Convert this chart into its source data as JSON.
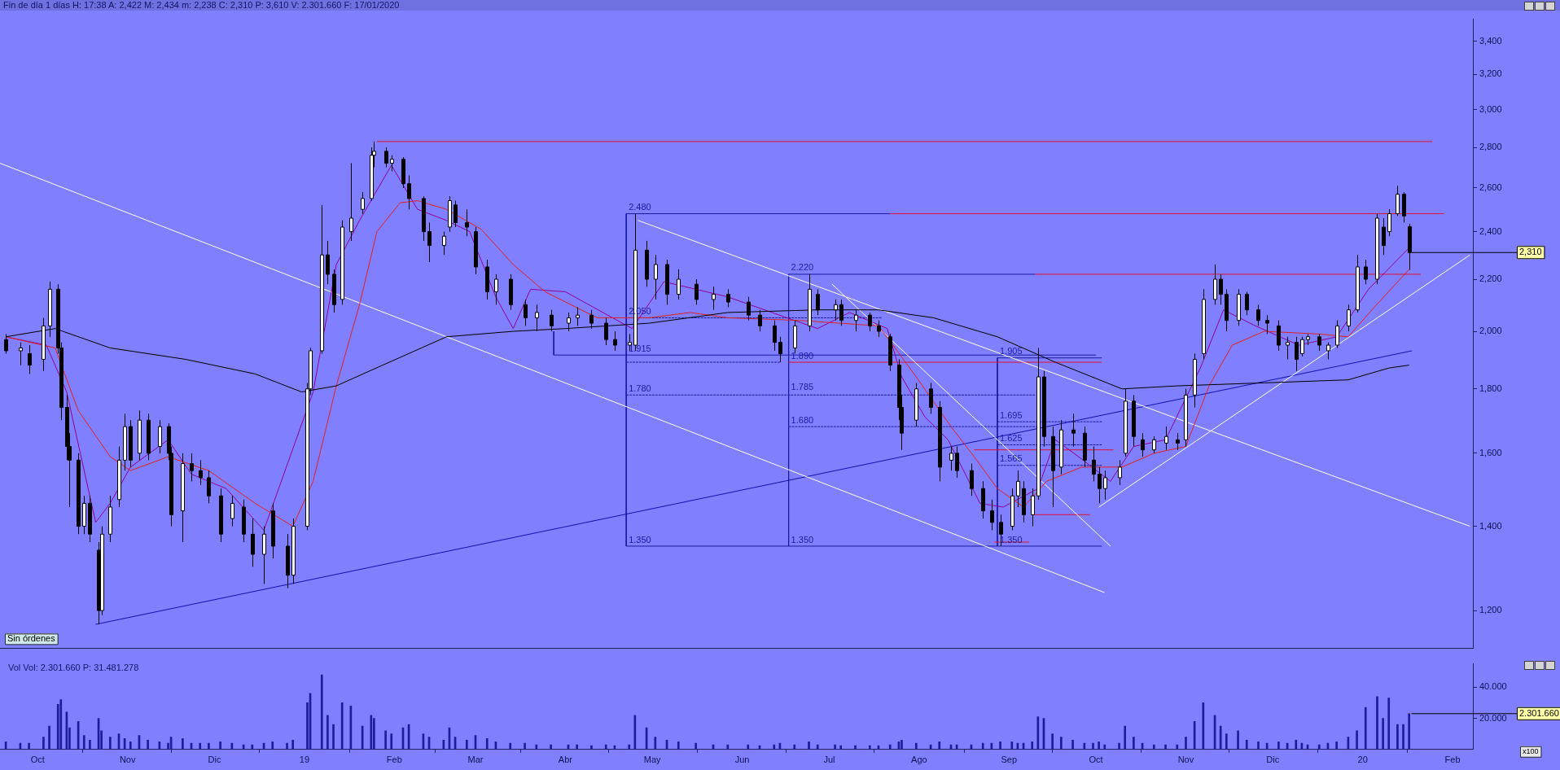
{
  "chart_data": [
    {
      "type": "candlestick",
      "title": "Fin de día 1 días  H: 17:38  A: 2,422  M: 2,434  m: 2,238  C: 2,310  P: 3,610  V: 2.301.660  F: 17/01/2020",
      "x": [
        "2018-09-20",
        "2018-09-25",
        "2018-09-28",
        "2018-10-03",
        "2018-10-05",
        "2018-10-08",
        "2018-10-09",
        "2018-10-11",
        "2018-10-12",
        "2018-10-15",
        "2018-10-17",
        "2018-10-19",
        "2018-10-22",
        "2018-10-23",
        "2018-10-26",
        "2018-10-29",
        "2018-10-31",
        "2018-11-02",
        "2018-11-05",
        "2018-11-08",
        "2018-11-12",
        "2018-11-15",
        "2018-11-16",
        "2018-11-20",
        "2018-11-23",
        "2018-11-26",
        "2018-11-29",
        "2018-12-03",
        "2018-12-07",
        "2018-12-11",
        "2018-12-14",
        "2018-12-18",
        "2018-12-21",
        "2018-12-26",
        "2018-12-28",
        "2019-01-02",
        "2019-01-03",
        "2019-01-07",
        "2019-01-09",
        "2019-01-11",
        "2019-01-14",
        "2019-01-17",
        "2019-01-21",
        "2019-01-24",
        "2019-01-25",
        "2019-01-29",
        "2019-01-31",
        "2019-02-04",
        "2019-02-06",
        "2019-02-11",
        "2019-02-13",
        "2019-02-18",
        "2019-02-20",
        "2019-02-22",
        "2019-02-26",
        "2019-03-01",
        "2019-03-05",
        "2019-03-08",
        "2019-03-13",
        "2019-03-18",
        "2019-03-22",
        "2019-03-27",
        "2019-04-02",
        "2019-04-05",
        "2019-04-10",
        "2019-04-15",
        "2019-04-18",
        "2019-04-23",
        "2019-04-25",
        "2019-04-29",
        "2019-05-02",
        "2019-05-06",
        "2019-05-10",
        "2019-05-16",
        "2019-05-22",
        "2019-05-27",
        "2019-06-03",
        "2019-06-07",
        "2019-06-12",
        "2019-06-14",
        "2019-06-19",
        "2019-06-24",
        "2019-06-27",
        "2019-07-03",
        "2019-07-05",
        "2019-07-10",
        "2019-07-15",
        "2019-07-18",
        "2019-07-22",
        "2019-07-25",
        "2019-07-26",
        "2019-07-31",
        "2019-08-05",
        "2019-08-08",
        "2019-08-12",
        "2019-08-14",
        "2019-08-19",
        "2019-08-23",
        "2019-08-26",
        "2019-08-29",
        "2019-09-02",
        "2019-09-04",
        "2019-09-06",
        "2019-09-09",
        "2019-09-11",
        "2019-09-13",
        "2019-09-16",
        "2019-09-19",
        "2019-09-23",
        "2019-09-27",
        "2019-09-30",
        "2019-10-02",
        "2019-10-04",
        "2019-10-09",
        "2019-10-11",
        "2019-10-14",
        "2019-10-17",
        "2019-10-21",
        "2019-10-25",
        "2019-10-29",
        "2019-11-01",
        "2019-11-04",
        "2019-11-07",
        "2019-11-11",
        "2019-11-13",
        "2019-11-15",
        "2019-11-19",
        "2019-11-22",
        "2019-11-26",
        "2019-11-29",
        "2019-12-03",
        "2019-12-06",
        "2019-12-09",
        "2019-12-11",
        "2019-12-13",
        "2019-12-17",
        "2019-12-20",
        "2019-12-23",
        "2019-12-27",
        "2019-12-30",
        "2020-01-02",
        "2020-01-06",
        "2020-01-08",
        "2020-01-10",
        "2020-01-13",
        "2020-01-15",
        "2020-01-17"
      ],
      "ohlc": [
        [
          1.97,
          1.99,
          1.92,
          1.93
        ],
        [
          1.93,
          1.96,
          1.88,
          1.94
        ],
        [
          1.92,
          1.95,
          1.85,
          1.88
        ],
        [
          1.9,
          2.05,
          1.86,
          2.02
        ],
        [
          2.02,
          2.19,
          1.98,
          2.16
        ],
        [
          2.16,
          2.18,
          1.92,
          1.94
        ],
        [
          1.94,
          1.96,
          1.7,
          1.74
        ],
        [
          1.74,
          1.78,
          1.58,
          1.62
        ],
        [
          1.62,
          1.66,
          1.45,
          1.58
        ],
        [
          1.58,
          1.6,
          1.38,
          1.4
        ],
        [
          1.4,
          1.48,
          1.38,
          1.46
        ],
        [
          1.46,
          1.48,
          1.36,
          1.38
        ],
        [
          1.34,
          1.36,
          1.17,
          1.2
        ],
        [
          1.2,
          1.4,
          1.19,
          1.38
        ],
        [
          1.38,
          1.48,
          1.36,
          1.45
        ],
        [
          1.47,
          1.62,
          1.45,
          1.58
        ],
        [
          1.58,
          1.72,
          1.55,
          1.68
        ],
        [
          1.68,
          1.7,
          1.56,
          1.58
        ],
        [
          1.6,
          1.73,
          1.58,
          1.7
        ],
        [
          1.7,
          1.72,
          1.58,
          1.6
        ],
        [
          1.62,
          1.7,
          1.6,
          1.68
        ],
        [
          1.68,
          1.69,
          1.58,
          1.6
        ],
        [
          1.6,
          1.62,
          1.4,
          1.43
        ],
        [
          1.44,
          1.6,
          1.36,
          1.57
        ],
        [
          1.57,
          1.6,
          1.52,
          1.55
        ],
        [
          1.55,
          1.58,
          1.51,
          1.53
        ],
        [
          1.53,
          1.55,
          1.46,
          1.48
        ],
        [
          1.48,
          1.5,
          1.36,
          1.38
        ],
        [
          1.42,
          1.48,
          1.4,
          1.46
        ],
        [
          1.45,
          1.47,
          1.36,
          1.38
        ],
        [
          1.38,
          1.42,
          1.3,
          1.33
        ],
        [
          1.33,
          1.4,
          1.26,
          1.38
        ],
        [
          1.44,
          1.46,
          1.32,
          1.35
        ],
        [
          1.35,
          1.38,
          1.25,
          1.28
        ],
        [
          1.28,
          1.42,
          1.26,
          1.4
        ],
        [
          1.4,
          1.82,
          1.39,
          1.8
        ],
        [
          1.8,
          1.94,
          1.78,
          1.93
        ],
        [
          1.93,
          2.52,
          1.92,
          2.3
        ],
        [
          2.3,
          2.36,
          2.18,
          2.22
        ],
        [
          2.22,
          2.24,
          2.07,
          2.1
        ],
        [
          2.12,
          2.45,
          2.1,
          2.42
        ],
        [
          2.4,
          2.72,
          2.36,
          2.46
        ],
        [
          2.5,
          2.58,
          2.48,
          2.55
        ],
        [
          2.55,
          2.8,
          2.54,
          2.76
        ],
        [
          2.76,
          2.83,
          2.7,
          2.78
        ],
        [
          2.78,
          2.8,
          2.7,
          2.72
        ],
        [
          2.72,
          2.76,
          2.68,
          2.74
        ],
        [
          2.74,
          2.75,
          2.6,
          2.62
        ],
        [
          2.62,
          2.66,
          2.5,
          2.55
        ],
        [
          2.55,
          2.56,
          2.36,
          2.4
        ],
        [
          2.4,
          2.44,
          2.27,
          2.34
        ],
        [
          2.34,
          2.4,
          2.3,
          2.38
        ],
        [
          2.42,
          2.56,
          2.4,
          2.54
        ],
        [
          2.52,
          2.54,
          2.42,
          2.44
        ],
        [
          2.44,
          2.5,
          2.38,
          2.42
        ],
        [
          2.4,
          2.42,
          2.22,
          2.25
        ],
        [
          2.25,
          2.28,
          2.12,
          2.15
        ],
        [
          2.15,
          2.22,
          2.1,
          2.2
        ],
        [
          2.2,
          2.22,
          2.08,
          2.1
        ],
        [
          2.1,
          2.12,
          2.02,
          2.05
        ],
        [
          2.05,
          2.1,
          2.0,
          2.07
        ],
        [
          2.06,
          2.08,
          2.0,
          2.02
        ],
        [
          2.03,
          2.07,
          2.0,
          2.05
        ],
        [
          2.05,
          2.09,
          2.02,
          2.06
        ],
        [
          2.06,
          2.08,
          2.01,
          2.03
        ],
        [
          2.03,
          2.05,
          1.95,
          1.97
        ],
        [
          1.97,
          2.0,
          1.93,
          1.95
        ],
        [
          1.95,
          1.99,
          1.93,
          1.96
        ],
        [
          1.95,
          2.48,
          1.93,
          2.32
        ],
        [
          2.32,
          2.36,
          2.17,
          2.2
        ],
        [
          2.2,
          2.3,
          2.12,
          2.26
        ],
        [
          2.26,
          2.28,
          2.1,
          2.14
        ],
        [
          2.14,
          2.24,
          2.12,
          2.2
        ],
        [
          2.18,
          2.2,
          2.1,
          2.12
        ],
        [
          2.12,
          2.17,
          2.08,
          2.14
        ],
        [
          2.14,
          2.16,
          2.09,
          2.11
        ],
        [
          2.11,
          2.13,
          2.04,
          2.06
        ],
        [
          2.06,
          2.08,
          2.0,
          2.02
        ],
        [
          2.02,
          2.04,
          1.93,
          1.96
        ],
        [
          1.96,
          1.98,
          1.89,
          1.92
        ],
        [
          1.94,
          2.04,
          1.92,
          2.02
        ],
        [
          2.02,
          2.22,
          2.0,
          2.16
        ],
        [
          2.14,
          2.16,
          2.06,
          2.08
        ],
        [
          2.08,
          2.12,
          2.04,
          2.1
        ],
        [
          2.1,
          2.12,
          2.02,
          2.04
        ],
        [
          2.04,
          2.08,
          2.0,
          2.06
        ],
        [
          2.06,
          2.07,
          2.0,
          2.02
        ],
        [
          2.02,
          2.04,
          1.98,
          2.0
        ],
        [
          1.98,
          1.99,
          1.86,
          1.88
        ],
        [
          1.88,
          1.9,
          1.7,
          1.74
        ],
        [
          1.74,
          1.78,
          1.61,
          1.66
        ],
        [
          1.7,
          1.82,
          1.68,
          1.8
        ],
        [
          1.8,
          1.82,
          1.72,
          1.74
        ],
        [
          1.74,
          1.76,
          1.52,
          1.56
        ],
        [
          1.58,
          1.62,
          1.55,
          1.6
        ],
        [
          1.6,
          1.62,
          1.53,
          1.55
        ],
        [
          1.55,
          1.57,
          1.48,
          1.5
        ],
        [
          1.5,
          1.52,
          1.42,
          1.44
        ],
        [
          1.44,
          1.47,
          1.39,
          1.41
        ],
        [
          1.41,
          1.43,
          1.35,
          1.38
        ],
        [
          1.4,
          1.5,
          1.39,
          1.48
        ],
        [
          1.48,
          1.55,
          1.45,
          1.52
        ],
        [
          1.5,
          1.52,
          1.41,
          1.43
        ],
        [
          1.43,
          1.5,
          1.4,
          1.48
        ],
        [
          1.48,
          1.94,
          1.47,
          1.84
        ],
        [
          1.84,
          1.86,
          1.62,
          1.65
        ],
        [
          1.65,
          1.68,
          1.45,
          1.55
        ],
        [
          1.56,
          1.7,
          1.54,
          1.67
        ],
        [
          1.67,
          1.72,
          1.62,
          1.66
        ],
        [
          1.66,
          1.68,
          1.56,
          1.58
        ],
        [
          1.58,
          1.62,
          1.52,
          1.54
        ],
        [
          1.54,
          1.56,
          1.46,
          1.5
        ],
        [
          1.5,
          1.55,
          1.47,
          1.53
        ],
        [
          1.53,
          1.58,
          1.51,
          1.56
        ],
        [
          1.6,
          1.8,
          1.59,
          1.76
        ],
        [
          1.76,
          1.78,
          1.62,
          1.65
        ],
        [
          1.64,
          1.66,
          1.59,
          1.61
        ],
        [
          1.61,
          1.65,
          1.6,
          1.64
        ],
        [
          1.63,
          1.68,
          1.61,
          1.65
        ],
        [
          1.64,
          1.66,
          1.61,
          1.63
        ],
        [
          1.64,
          1.8,
          1.62,
          1.78
        ],
        [
          1.78,
          1.92,
          1.74,
          1.9
        ],
        [
          1.92,
          2.16,
          1.9,
          2.12
        ],
        [
          2.12,
          2.26,
          2.1,
          2.2
        ],
        [
          2.2,
          2.22,
          2.1,
          2.14
        ],
        [
          2.14,
          2.16,
          2.0,
          2.04
        ],
        [
          2.04,
          2.16,
          2.02,
          2.14
        ],
        [
          2.14,
          2.15,
          2.06,
          2.08
        ],
        [
          2.08,
          2.1,
          2.02,
          2.04
        ],
        [
          2.04,
          2.06,
          1.99,
          2.03
        ],
        [
          2.02,
          2.04,
          1.93,
          1.95
        ],
        [
          1.95,
          1.98,
          1.9,
          1.96
        ],
        [
          1.96,
          1.98,
          1.86,
          1.9
        ],
        [
          1.92,
          1.98,
          1.91,
          1.97
        ],
        [
          1.97,
          1.99,
          1.95,
          1.98
        ],
        [
          1.98,
          1.99,
          1.93,
          1.95
        ],
        [
          1.93,
          1.96,
          1.9,
          1.95
        ],
        [
          1.95,
          2.04,
          1.94,
          2.02
        ],
        [
          2.02,
          2.1,
          2.0,
          2.08
        ],
        [
          2.08,
          2.3,
          2.07,
          2.25
        ],
        [
          2.25,
          2.28,
          2.18,
          2.2
        ],
        [
          2.2,
          2.48,
          2.18,
          2.46
        ],
        [
          2.42,
          2.46,
          2.3,
          2.34
        ],
        [
          2.4,
          2.5,
          2.38,
          2.48
        ],
        [
          2.48,
          2.61,
          2.47,
          2.57
        ],
        [
          2.57,
          2.58,
          2.44,
          2.47
        ],
        [
          2.422,
          2.434,
          2.238,
          2.31
        ]
      ],
      "series": [
        {
          "type": "line",
          "color": "#000000",
          "x": [
            "2018-09-20",
            "2018-10-07",
            "2018-10-26",
            "2018-11-21",
            "2018-12-15",
            "2018-12-31",
            "2019-01-12",
            "2019-01-28",
            "2019-02-19",
            "2019-03-14",
            "2019-04-01",
            "2019-04-30",
            "2019-05-27",
            "2019-06-27",
            "2019-07-18",
            "2019-08-06",
            "2019-08-28",
            "2019-09-17",
            "2019-10-10",
            "2019-10-29",
            "2019-11-28",
            "2019-12-27",
            "2020-01-10",
            "2020-01-17"
          ],
          "values": [
            1.98,
            2.01,
            1.94,
            1.9,
            1.85,
            1.79,
            1.81,
            1.88,
            1.98,
            2.0,
            2.01,
            2.03,
            2.07,
            2.08,
            2.08,
            2.05,
            1.98,
            1.89,
            1.8,
            1.81,
            1.82,
            1.83,
            1.87,
            1.88
          ]
        },
        {
          "type": "line",
          "color": "#e02020",
          "x": [
            "2018-09-20",
            "2018-10-07",
            "2018-10-15",
            "2018-10-26",
            "2018-11-02",
            "2018-11-15",
            "2018-11-29",
            "2018-12-15",
            "2018-12-28",
            "2019-01-04",
            "2019-01-12",
            "2019-01-20",
            "2019-01-26",
            "2019-02-03",
            "2019-02-09",
            "2019-02-19",
            "2019-03-03",
            "2019-03-14",
            "2019-03-25",
            "2019-04-12",
            "2019-04-30",
            "2019-05-14",
            "2019-05-27",
            "2019-06-21",
            "2019-07-18",
            "2019-07-23",
            "2019-07-31",
            "2019-08-12",
            "2019-08-20",
            "2019-08-28",
            "2019-09-06",
            "2019-09-14",
            "2019-09-26",
            "2019-10-10",
            "2019-10-21",
            "2019-11-01",
            "2019-11-09",
            "2019-11-17",
            "2019-11-28",
            "2019-12-17",
            "2019-12-27",
            "2020-01-05",
            "2020-01-17"
          ],
          "values": [
            1.98,
            1.94,
            1.73,
            1.59,
            1.55,
            1.59,
            1.55,
            1.46,
            1.4,
            1.52,
            1.81,
            2.1,
            2.4,
            2.53,
            2.54,
            2.5,
            2.41,
            2.26,
            2.15,
            2.05,
            2.05,
            2.07,
            2.05,
            2.04,
            2.02,
            1.95,
            1.84,
            1.68,
            1.59,
            1.5,
            1.45,
            1.52,
            1.56,
            1.56,
            1.6,
            1.62,
            1.81,
            1.95,
            2.0,
            1.99,
            1.98,
            2.09,
            2.24
          ]
        },
        {
          "type": "line",
          "color": "#900090",
          "x": [
            "2018-09-20",
            "2018-10-04",
            "2018-10-11",
            "2018-10-21",
            "2018-10-26",
            "2018-11-02",
            "2018-11-15",
            "2018-11-23",
            "2018-12-05",
            "2018-12-18",
            "2019-01-04",
            "2019-01-12",
            "2019-01-20",
            "2019-01-31",
            "2019-02-09",
            "2019-02-19",
            "2019-02-27",
            "2019-03-08",
            "2019-03-14",
            "2019-03-20",
            "2019-04-01",
            "2019-04-24",
            "2019-05-05",
            "2019-05-27",
            "2019-06-27",
            "2019-07-08",
            "2019-07-21",
            "2019-07-26",
            "2019-08-03",
            "2019-08-11",
            "2019-08-22",
            "2019-08-30",
            "2019-09-11",
            "2019-09-17",
            "2019-09-25",
            "2019-10-06",
            "2019-10-14",
            "2019-10-25",
            "2019-11-06",
            "2019-11-14",
            "2019-11-25",
            "2019-12-10",
            "2019-12-23",
            "2020-01-03",
            "2020-01-17"
          ],
          "values": [
            1.98,
            1.95,
            1.79,
            1.41,
            1.46,
            1.56,
            1.64,
            1.54,
            1.5,
            1.39,
            1.79,
            2.26,
            2.45,
            2.71,
            2.5,
            2.45,
            2.4,
            2.13,
            2.01,
            2.16,
            2.15,
            2.01,
            2.19,
            2.13,
            2.01,
            2.07,
            2.01,
            1.84,
            1.71,
            1.64,
            1.46,
            1.45,
            1.5,
            1.64,
            1.59,
            1.52,
            1.62,
            1.64,
            1.87,
            2.08,
            2.02,
            1.95,
            1.98,
            2.16,
            2.33
          ]
        },
        {
          "type": "line",
          "color": "#ffffff",
          "x": [
            "2018-09-18",
            "2019-10-04"
          ],
          "values": [
            2.72,
            1.24
          ]
        },
        {
          "type": "line",
          "color": "#ffffff",
          "x": [
            "2019-04-26",
            "2020-02-07"
          ],
          "values": [
            2.45,
            1.4
          ]
        },
        {
          "type": "line",
          "color": "#ffffff",
          "x": [
            "2019-07-02",
            "2019-10-06"
          ],
          "values": [
            2.18,
            1.35
          ]
        },
        {
          "type": "line",
          "color": "#ffffff",
          "x": [
            "2019-10-02",
            "2020-02-07"
          ],
          "values": [
            1.45,
            2.3
          ]
        },
        {
          "type": "line",
          "color": "#1010b0",
          "x": [
            "2018-10-21",
            "2020-01-18"
          ],
          "values": [
            1.17,
            1.93
          ]
        },
        {
          "type": "line",
          "color": "#e01030",
          "x": [
            "2019-01-26",
            "2020-01-25"
          ],
          "values": [
            2.83,
            2.83
          ]
        },
        {
          "type": "line",
          "color": "#e01030",
          "x": [
            "2019-07-22",
            "2020-01-29"
          ],
          "values": [
            2.48,
            2.48
          ]
        },
        {
          "type": "line",
          "color": "#e01030",
          "x": [
            "2019-09-10",
            "2020-01-21"
          ],
          "values": [
            2.22,
            2.22
          ]
        },
        {
          "type": "line",
          "color": "#e01030",
          "x": [
            "2019-06-17",
            "2019-10-03"
          ],
          "values": [
            1.89,
            1.89
          ]
        },
        {
          "type": "line",
          "color": "#e01030",
          "x": [
            "2019-08-20",
            "2019-10-07"
          ],
          "values": [
            1.61,
            1.61
          ]
        },
        {
          "type": "line",
          "color": "#e01030",
          "x": [
            "2019-09-09",
            "2019-09-29"
          ],
          "values": [
            1.43,
            1.43
          ]
        },
        {
          "type": "line",
          "color": "#e01030",
          "x": [
            "2019-08-27",
            "2019-09-08"
          ],
          "values": [
            1.36,
            1.36
          ]
        },
        {
          "type": "line",
          "color": "#1a1aa0",
          "x": [
            "2019-07-22",
            "2019-04-22",
            "2019-04-22",
            "2019-10-03"
          ],
          "values": [
            2.48,
            2.48,
            1.35,
            1.35
          ]
        },
        {
          "type": "line",
          "color": "#1a1aa0",
          "x": [
            "2019-09-10",
            "2019-06-17",
            "2019-06-17"
          ],
          "values": [
            2.22,
            2.22,
            1.35
          ]
        },
        {
          "type": "line",
          "color": "#1a1aa0",
          "x": [
            "2019-10-03",
            "2019-08-28",
            "2019-08-28"
          ],
          "values": [
            1.905,
            1.905,
            1.35
          ]
        },
        {
          "type": "line",
          "color": "#1a1aa0",
          "x": [
            "2019-03-28",
            "2019-03-28",
            "2019-10-01"
          ],
          "values": [
            2.0,
            1.915,
            1.915
          ]
        },
        {
          "type": "line",
          "color": "#1a1aa0",
          "line_style": "dashed",
          "x": [
            "2019-04-22",
            "2019-07-19"
          ],
          "values": [
            2.05,
            2.05
          ]
        },
        {
          "type": "line",
          "color": "#1a1aa0",
          "line_style": "dashed",
          "x": [
            "2019-04-22",
            "2019-06-14"
          ],
          "values": [
            1.89,
            1.89
          ]
        },
        {
          "type": "line",
          "color": "#1a1aa0",
          "line_style": "dashed",
          "x": [
            "2019-04-22",
            "2019-09-10"
          ],
          "values": [
            1.78,
            1.78
          ]
        },
        {
          "type": "line",
          "color": "#1a1aa0",
          "line_style": "dashed",
          "x": [
            "2019-06-17",
            "2019-09-11"
          ],
          "values": [
            1.68,
            1.68
          ]
        },
        {
          "type": "line",
          "color": "#1a1aa0",
          "line_style": "dashed",
          "x": [
            "2019-08-28",
            "2019-10-03"
          ],
          "values": [
            1.695,
            1.695
          ]
        },
        {
          "type": "line",
          "color": "#1a1aa0",
          "line_style": "dashed",
          "x": [
            "2019-08-28",
            "2019-10-03"
          ],
          "values": [
            1.625,
            1.625
          ]
        },
        {
          "type": "line",
          "color": "#1a1aa0",
          "line_style": "dashed",
          "x": [
            "2019-08-28",
            "2019-10-03"
          ],
          "values": [
            1.565,
            1.565
          ]
        }
      ],
      "log": true,
      "ylim": [
        1.12,
        3.54
      ],
      "yticks": [
        {
          "value": 1.2,
          "label": "1,200"
        },
        {
          "value": 1.4,
          "label": "1,400"
        },
        {
          "value": 1.6,
          "label": "1,600"
        },
        {
          "value": 1.8,
          "label": "1,800"
        },
        {
          "value": 2.0,
          "label": "2,000"
        },
        {
          "value": 2.2,
          "label": "2,200"
        },
        {
          "value": 2.4,
          "label": "2,400"
        },
        {
          "value": 2.6,
          "label": "2,600"
        },
        {
          "value": 2.8,
          "label": "2,800"
        },
        {
          "value": 3.0,
          "label": "3,000"
        },
        {
          "value": 3.2,
          "label": "3,200"
        },
        {
          "value": 3.4,
          "label": "3,400"
        }
      ],
      "xlim": [
        "2018-09-18",
        "2020-02-08"
      ],
      "tick_labels": "y",
      "annotations": [
        {
          "text": "2.480",
          "x": "2019-04-22",
          "y": 2.48
        },
        {
          "text": "2.050",
          "x": "2019-04-22",
          "y": 2.05
        },
        {
          "text": "1.915",
          "x": "2019-04-22",
          "y": 1.915
        },
        {
          "text": "1.780",
          "x": "2019-04-22",
          "y": 1.78
        },
        {
          "text": "1.350",
          "x": "2019-04-22",
          "y": 1.35
        },
        {
          "text": "2.220",
          "x": "2019-06-17",
          "y": 2.22
        },
        {
          "text": "1.890",
          "x": "2019-06-17",
          "y": 1.89
        },
        {
          "text": "1.785",
          "x": "2019-06-17",
          "y": 1.785
        },
        {
          "text": "1.680",
          "x": "2019-06-17",
          "y": 1.68
        },
        {
          "text": "1.350",
          "x": "2019-06-17",
          "y": 1.35
        },
        {
          "text": "1.905",
          "x": "2019-08-28",
          "y": 1.905
        },
        {
          "text": "1.695",
          "x": "2019-08-28",
          "y": 1.695
        },
        {
          "text": "1.625",
          "x": "2019-08-28",
          "y": 1.625
        },
        {
          "text": "1.565",
          "x": "2019-08-28",
          "y": 1.565
        },
        {
          "text": "1.350",
          "x": "2019-08-28",
          "y": 1.35
        },
        {
          "text": "2,310",
          "x": "2020-01-17",
          "y": 2.31
        },
        "Sin órdenes"
      ]
    },
    {
      "type": "bar",
      "title": "Vol  Vol: 2.301.660  P: 31.481.278",
      "color": "#1c1c9c",
      "x": [
        "2018-09-20",
        "2018-09-25",
        "2018-09-28",
        "2018-10-03",
        "2018-10-05",
        "2018-10-08",
        "2018-10-09",
        "2018-10-11",
        "2018-10-12",
        "2018-10-15",
        "2018-10-17",
        "2018-10-19",
        "2018-10-22",
        "2018-10-23",
        "2018-10-26",
        "2018-10-29",
        "2018-10-31",
        "2018-11-02",
        "2018-11-05",
        "2018-11-08",
        "2018-11-12",
        "2018-11-15",
        "2018-11-16",
        "2018-11-20",
        "2018-11-23",
        "2018-11-26",
        "2018-11-29",
        "2018-12-03",
        "2018-12-07",
        "2018-12-11",
        "2018-12-14",
        "2018-12-18",
        "2018-12-21",
        "2018-12-26",
        "2018-12-28",
        "2019-01-02",
        "2019-01-03",
        "2019-01-07",
        "2019-01-09",
        "2019-01-11",
        "2019-01-14",
        "2019-01-17",
        "2019-01-21",
        "2019-01-24",
        "2019-01-25",
        "2019-01-29",
        "2019-01-31",
        "2019-02-04",
        "2019-02-06",
        "2019-02-11",
        "2019-02-13",
        "2019-02-18",
        "2019-02-20",
        "2019-02-22",
        "2019-02-26",
        "2019-03-01",
        "2019-03-05",
        "2019-03-08",
        "2019-03-13",
        "2019-03-18",
        "2019-03-22",
        "2019-03-27",
        "2019-04-02",
        "2019-04-05",
        "2019-04-10",
        "2019-04-15",
        "2019-04-18",
        "2019-04-23",
        "2019-04-25",
        "2019-04-29",
        "2019-05-02",
        "2019-05-06",
        "2019-05-10",
        "2019-05-16",
        "2019-05-22",
        "2019-05-27",
        "2019-06-03",
        "2019-06-07",
        "2019-06-12",
        "2019-06-14",
        "2019-06-19",
        "2019-06-24",
        "2019-06-27",
        "2019-07-03",
        "2019-07-05",
        "2019-07-10",
        "2019-07-15",
        "2019-07-18",
        "2019-07-22",
        "2019-07-25",
        "2019-07-26",
        "2019-07-31",
        "2019-08-05",
        "2019-08-08",
        "2019-08-12",
        "2019-08-14",
        "2019-08-19",
        "2019-08-23",
        "2019-08-26",
        "2019-08-29",
        "2019-09-02",
        "2019-09-04",
        "2019-09-06",
        "2019-09-09",
        "2019-09-11",
        "2019-09-13",
        "2019-09-16",
        "2019-09-19",
        "2019-09-23",
        "2019-09-27",
        "2019-09-30",
        "2019-10-02",
        "2019-10-04",
        "2019-10-09",
        "2019-10-11",
        "2019-10-14",
        "2019-10-17",
        "2019-10-21",
        "2019-10-25",
        "2019-10-29",
        "2019-11-01",
        "2019-11-04",
        "2019-11-07",
        "2019-11-11",
        "2019-11-13",
        "2019-11-15",
        "2019-11-19",
        "2019-11-22",
        "2019-11-26",
        "2019-11-29",
        "2019-12-03",
        "2019-12-06",
        "2019-12-09",
        "2019-12-11",
        "2019-12-13",
        "2019-12-17",
        "2019-12-20",
        "2019-12-23",
        "2019-12-27",
        "2019-12-30",
        "2020-01-02",
        "2020-01-06",
        "2020-01-08",
        "2020-01-10",
        "2020-01-13",
        "2020-01-15",
        "2020-01-17"
      ],
      "values": [
        5000,
        4000,
        4000,
        8000,
        15000,
        29000,
        32000,
        24000,
        14000,
        18000,
        9000,
        6000,
        20000,
        12000,
        8000,
        10000,
        7000,
        5000,
        9000,
        6000,
        5000,
        4000,
        8000,
        7000,
        4000,
        4000,
        4000,
        5000,
        4000,
        3000,
        3000,
        4000,
        5000,
        4000,
        6000,
        30000,
        36000,
        48000,
        22000,
        16000,
        30000,
        28000,
        15000,
        22000,
        20000,
        12000,
        10000,
        14000,
        16000,
        10000,
        8000,
        6000,
        14000,
        8000,
        6000,
        9000,
        7000,
        5000,
        4000,
        4000,
        3000,
        3000,
        3000,
        3000,
        2500,
        3000,
        2500,
        3000,
        22000,
        14000,
        8000,
        6000,
        5000,
        4000,
        3000,
        3000,
        3000,
        2500,
        3000,
        4000,
        3000,
        5000,
        3000,
        3000,
        2500,
        2500,
        2500,
        2500,
        3000,
        5000,
        6000,
        4000,
        3000,
        5000,
        3000,
        3000,
        3000,
        4000,
        4000,
        5000,
        5000,
        4000,
        4000,
        5000,
        21000,
        20000,
        10000,
        8000,
        6000,
        4000,
        4000,
        5000,
        3000,
        4000,
        15000,
        8000,
        4000,
        3000,
        3000,
        3000,
        8000,
        18000,
        30000,
        22000,
        15000,
        10000,
        12000,
        6000,
        5000,
        4000,
        5000,
        4000,
        6000,
        4000,
        3000,
        3000,
        4000,
        5000,
        8000,
        12000,
        27000,
        34000,
        20000,
        33000,
        16000,
        16000,
        23016.6
      ],
      "ylim": [
        0,
        55000
      ],
      "yticks": [
        {
          "value": 20000,
          "label": "20.000"
        },
        {
          "value": 40000,
          "label": "40.000"
        }
      ],
      "xlim": [
        "2018-09-18",
        "2020-02-08"
      ],
      "xticks": [
        {
          "value": "2018-10-01",
          "label": "Oct"
        },
        {
          "value": "2018-11-01",
          "label": "Nov"
        },
        {
          "value": "2018-12-01",
          "label": "Dic"
        },
        {
          "value": "2019-01-01",
          "label": "19"
        },
        {
          "value": "2019-02-01",
          "label": "Feb"
        },
        {
          "value": "2019-03-01",
          "label": "Mar"
        },
        {
          "value": "2019-04-01",
          "label": "Abr"
        },
        {
          "value": "2019-05-01",
          "label": "May"
        },
        {
          "value": "2019-06-01",
          "label": "Jun"
        },
        {
          "value": "2019-07-01",
          "label": "Jul"
        },
        {
          "value": "2019-08-01",
          "label": "Ago"
        },
        {
          "value": "2019-09-01",
          "label": "Sep"
        },
        {
          "value": "2019-10-01",
          "label": "Oct"
        },
        {
          "value": "2019-11-01",
          "label": "Nov"
        },
        {
          "value": "2019-12-01",
          "label": "Dic"
        },
        {
          "value": "2020-01-01",
          "label": "20"
        },
        {
          "value": "2020-02-01",
          "label": "Feb"
        }
      ],
      "annotations": [
        {
          "text": "2.301.660",
          "x": "2020-01-17",
          "y": 23016.6
        },
        "x100"
      ]
    }
  ]
}
